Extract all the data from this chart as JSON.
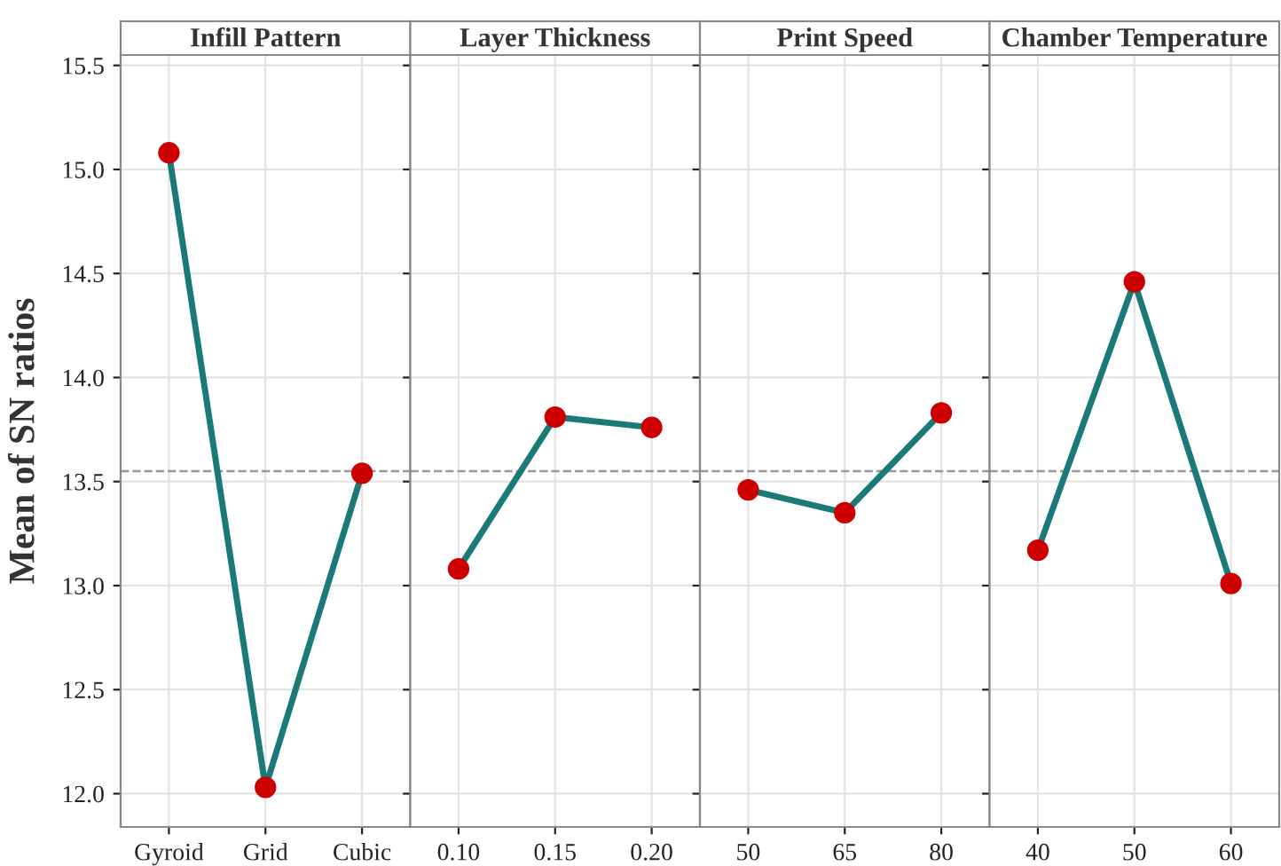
{
  "chart_data": [
    {
      "type": "line",
      "title": "Infill Pattern",
      "ylabel": "Mean of SN ratios",
      "categories": [
        "Gyroid",
        "Grid",
        "Cubic"
      ],
      "series": [
        {
          "color": "#1a7a78",
          "colors": [
            "#cc0000",
            "#cc0000",
            "#cc0000"
          ],
          "values": [
            15.08,
            12.03,
            13.54
          ]
        }
      ],
      "ylim": [
        11.84,
        15.55
      ],
      "yticks": [
        {
          "value": 12.0,
          "label": "12.0"
        },
        {
          "value": 12.5,
          "label": "12.5"
        },
        {
          "value": 13.0,
          "label": "13.0"
        },
        {
          "value": 13.5,
          "label": "13.5"
        },
        {
          "value": 14.0,
          "label": "14.0"
        },
        {
          "value": 14.5,
          "label": "14.5"
        },
        {
          "value": 15.0,
          "label": "15.0"
        },
        {
          "value": 15.5,
          "label": "15.5"
        }
      ],
      "ref_lines": [
        {
          "axis": "y",
          "value": 13.55,
          "color": "#999999",
          "line_style": "dashed"
        }
      ],
      "grid": true,
      "marker": "circle",
      "line_style": "solid"
    },
    {
      "type": "line",
      "title": "Layer Thickness",
      "categories": [
        "0.10",
        "0.15",
        "0.20"
      ],
      "series": [
        {
          "color": "#1a7a78",
          "colors": [
            "#cc0000",
            "#cc0000",
            "#cc0000"
          ],
          "values": [
            13.08,
            13.81,
            13.76
          ]
        }
      ],
      "ylim": [
        11.84,
        15.55
      ],
      "ref_lines": [
        {
          "axis": "y",
          "value": 13.55,
          "color": "#999999",
          "line_style": "dashed"
        }
      ],
      "grid": true,
      "marker": "circle",
      "line_style": "solid",
      "tick_labels": "x"
    },
    {
      "type": "line",
      "title": "Print Speed",
      "categories": [
        "50",
        "65",
        "80"
      ],
      "series": [
        {
          "color": "#1a7a78",
          "colors": [
            "#cc0000",
            "#cc0000",
            "#cc0000"
          ],
          "values": [
            13.46,
            13.35,
            13.83
          ]
        }
      ],
      "ylim": [
        11.84,
        15.55
      ],
      "ref_lines": [
        {
          "axis": "y",
          "value": 13.55,
          "color": "#999999",
          "line_style": "dashed"
        }
      ],
      "grid": true,
      "marker": "circle",
      "line_style": "solid",
      "tick_labels": "x"
    },
    {
      "type": "line",
      "title": "Chamber Temperature",
      "categories": [
        "40",
        "50",
        "60"
      ],
      "series": [
        {
          "color": "#1a7a78",
          "colors": [
            "#cc0000",
            "#cc0000",
            "#cc0000"
          ],
          "values": [
            13.17,
            14.46,
            13.01
          ]
        }
      ],
      "ylim": [
        11.84,
        15.55
      ],
      "ref_lines": [
        {
          "axis": "y",
          "value": 13.55,
          "color": "#999999",
          "line_style": "dashed"
        }
      ],
      "grid": true,
      "marker": "circle",
      "line_style": "solid",
      "tick_labels": "x"
    }
  ]
}
